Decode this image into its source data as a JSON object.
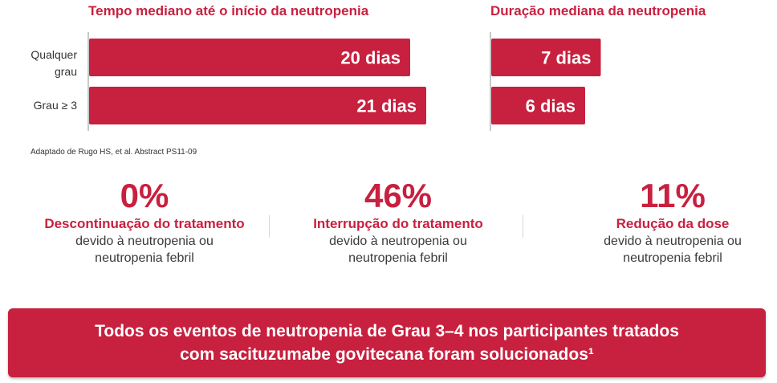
{
  "chart_data": [
    {
      "type": "bar",
      "orientation": "horizontal",
      "title": "Tempo mediano até o início da neutropenia",
      "categories": [
        "Qualquer grau",
        "Grau ≥ 3"
      ],
      "values": [
        20,
        21
      ],
      "value_labels": [
        "20 dias",
        "21 dias"
      ],
      "unit": "dias"
    },
    {
      "type": "bar",
      "orientation": "horizontal",
      "title": "Duração mediana da neutropenia",
      "categories": [
        "Qualquer grau",
        "Grau ≥ 3"
      ],
      "values": [
        7,
        6
      ],
      "value_labels": [
        "7 dias",
        "6 dias"
      ],
      "unit": "dias"
    }
  ],
  "labels": {
    "cat1": [
      "Qualquer",
      "grau"
    ],
    "cat2": "Grau ≥ 3"
  },
  "source": "Adaptado de Rugo HS, et al. Abstract PS11-09",
  "stats": [
    {
      "pct": "0%",
      "head": "Descontinuação do tratamento",
      "desc1": "devido à neutropenia ou",
      "desc2": "neutropenia febril"
    },
    {
      "pct": "46%",
      "head": "Interrupção do tratamento",
      "desc1": "devido à neutropenia ou",
      "desc2": "neutropenia febril"
    },
    {
      "pct": "11%",
      "head": "Redução da dose",
      "desc1": "devido à neutropenia ou",
      "desc2": "neutropenia febril"
    }
  ],
  "banner": {
    "line1": "Todos os eventos de neutropenia de Grau 3–4 nos participantes tratados",
    "line2": "com sacituzumabe govitecana foram solucionados¹"
  },
  "colors": {
    "accent": "#c8203f",
    "axis": "#c8c8c8",
    "text": "#3a3a3a"
  }
}
